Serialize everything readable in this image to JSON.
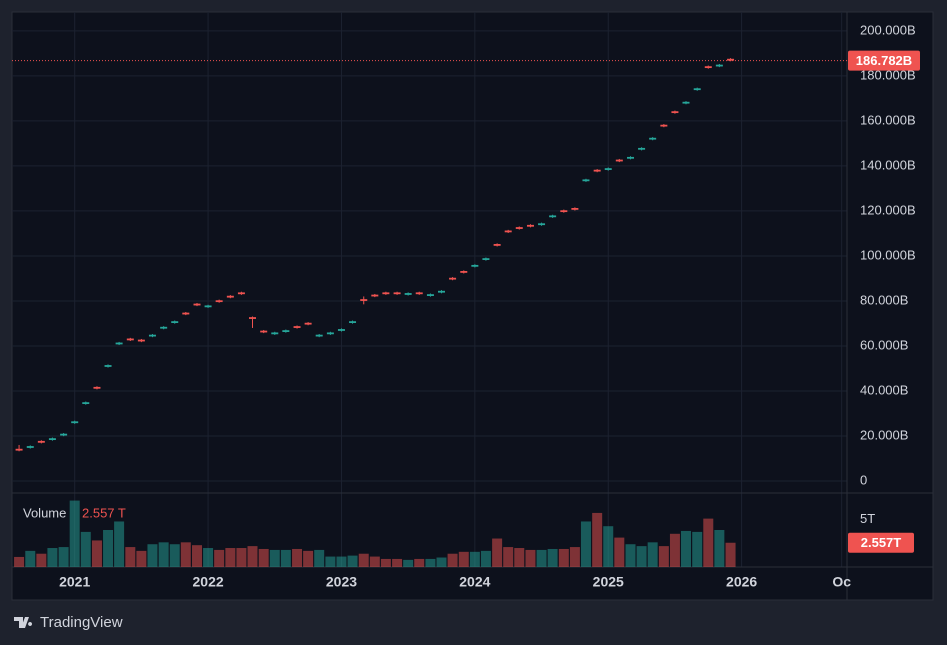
{
  "chart_data": {
    "type": "candlestick",
    "x": [
      2020.583,
      2020.667,
      2020.75,
      2020.833,
      2020.917,
      2021,
      2021.083,
      2021.167,
      2021.25,
      2021.333,
      2021.417,
      2021.5,
      2021.583,
      2021.667,
      2021.75,
      2021.833,
      2021.917,
      2022,
      2022.083,
      2022.167,
      2022.25,
      2022.333,
      2022.417,
      2022.5,
      2022.583,
      2022.667,
      2022.75,
      2022.833,
      2022.917,
      2023,
      2023.083,
      2023.167,
      2023.25,
      2023.333,
      2023.417,
      2023.5,
      2023.583,
      2023.667,
      2023.75,
      2023.833,
      2023.917,
      2024,
      2024.083,
      2024.167,
      2024.25,
      2024.333,
      2024.417,
      2024.5,
      2024.583,
      2024.667,
      2024.75,
      2024.833,
      2024.917,
      2025,
      2025.083,
      2025.167,
      2025.25,
      2025.333,
      2025.417,
      2025.5,
      2025.583,
      2025.667,
      2025.75,
      2025.833,
      2025.917
    ],
    "open": [
      14.3,
      14.7,
      17.8,
      18.2,
      20.2,
      25.7,
      34.2,
      41.8,
      50.7,
      60.7,
      63.3,
      62.8,
      64.2,
      67.7,
      70.2,
      74.8,
      78.8,
      77.2,
      80.3,
      82.3,
      83.8,
      72.8,
      66.8,
      65.2,
      66.2,
      68.8,
      70.3,
      64.2,
      65.2,
      66.7,
      70.2,
      80.8,
      82.8,
      83.8,
      83.8,
      82.7,
      83.8,
      82.2,
      83.7,
      90.3,
      93.3,
      95.2,
      98.2,
      105.3,
      111.3,
      112.8,
      113.8,
      113.7,
      117.2,
      120.3,
      121.3,
      133.2,
      138.3,
      138.2,
      142.8,
      143.2,
      147.2,
      151.7,
      158.3,
      164.3,
      167.7,
      173.7,
      184.3,
      184.2,
      187.6
    ],
    "high": [
      16,
      15.8,
      18.1,
      19.3,
      21.3,
      26.8,
      35.3,
      42.1,
      51.8,
      61.8,
      63.6,
      63.1,
      65.3,
      68.8,
      71.3,
      75.1,
      79.1,
      78.3,
      80.6,
      82.6,
      84.1,
      73.1,
      67.1,
      66.3,
      67.3,
      69.1,
      70.6,
      65.3,
      66.3,
      67.8,
      71.3,
      82,
      83.1,
      84.1,
      84.1,
      83.8,
      84.1,
      83.3,
      84.8,
      90.6,
      93.6,
      96.3,
      99.3,
      105.6,
      111.6,
      113.1,
      114.1,
      114.8,
      118.3,
      120.6,
      121.6,
      134.3,
      138.6,
      139.3,
      143.1,
      144.3,
      148.3,
      152.8,
      158.6,
      164.6,
      168.8,
      174.8,
      184.6,
      185.3,
      187.9
    ],
    "low": [
      13.2,
      14.4,
      16.7,
      17.9,
      19.9,
      25.4,
      33.9,
      40.7,
      50.4,
      60.4,
      62.2,
      61.7,
      63.9,
      67.4,
      69.9,
      73.7,
      77.7,
      76.9,
      79.2,
      81.2,
      82.7,
      68,
      65.7,
      64.9,
      65.9,
      67.7,
      69.2,
      63.9,
      64.9,
      66.4,
      69.9,
      78.5,
      81.7,
      82.7,
      82.7,
      82.4,
      82.7,
      81.9,
      83.4,
      89.2,
      92.2,
      94.9,
      97.9,
      104.2,
      110.2,
      111.7,
      112.7,
      113.4,
      116.9,
      119.2,
      120.2,
      132.9,
      137.2,
      137.9,
      141.7,
      142.9,
      146.9,
      151.4,
      157.2,
      163.2,
      167.4,
      173.4,
      183.2,
      183.9,
      186.5
    ],
    "close": [
      13.5,
      15.5,
      17,
      19,
      21,
      26.5,
      35,
      41,
      51.5,
      61.5,
      62.5,
      62,
      65,
      68.5,
      71,
      74,
      78,
      78,
      79.5,
      81.5,
      83,
      72,
      66,
      66,
      67,
      68,
      69.5,
      65,
      66,
      67.5,
      71,
      80,
      82,
      83,
      83,
      83.5,
      83,
      83,
      84.5,
      89.5,
      92.5,
      96,
      99,
      104.5,
      110.5,
      112,
      113,
      114.5,
      118,
      119.5,
      120.5,
      134,
      137.5,
      139,
      142,
      144,
      148,
      152.5,
      157.5,
      163.5,
      168.5,
      174.5,
      183.5,
      185,
      186.782
    ],
    "xlim": [
      2020.53,
      2026.79
    ],
    "xticks": [
      2021,
      2022,
      2023,
      2024,
      2025,
      2026,
      {
        "value": 2026.75,
        "label": "Oc"
      }
    ],
    "ylim": [
      -4.9,
      208.4
    ],
    "yticks": [
      0,
      {
        "value": 20,
        "label": "20.000B"
      },
      {
        "value": 40,
        "label": "40.000B"
      },
      {
        "value": 60,
        "label": "60.000B"
      },
      {
        "value": 80,
        "label": "80.000B"
      },
      {
        "value": 100,
        "label": "100.000B"
      },
      {
        "value": 120,
        "label": "120.000B"
      },
      {
        "value": 140,
        "label": "140.000B"
      },
      {
        "value": 160,
        "label": "160.000B"
      },
      {
        "value": 180,
        "label": "180.000B"
      },
      {
        "value": 200,
        "label": "200.000B"
      }
    ],
    "grid": true,
    "up_color": "#26a69a",
    "down_color": "#ef5350",
    "last_value_label": "186.782B",
    "volume": {
      "name": "Volume",
      "values": [
        1.06,
        1.7,
        1.4,
        2.0,
        2.1,
        7.0,
        3.7,
        2.8,
        3.9,
        4.8,
        2.1,
        1.7,
        2.4,
        2.6,
        2.4,
        2.6,
        2.3,
        2.0,
        1.8,
        2.0,
        2.0,
        2.2,
        1.9,
        1.8,
        1.8,
        1.9,
        1.7,
        1.8,
        1.1,
        1.1,
        1.2,
        1.4,
        1.1,
        0.85,
        0.85,
        0.75,
        0.85,
        0.85,
        1.0,
        1.4,
        1.6,
        1.6,
        1.7,
        3.0,
        2.1,
        2.0,
        1.8,
        1.8,
        1.9,
        1.9,
        2.1,
        4.8,
        5.7,
        4.3,
        3.1,
        2.4,
        2.2,
        2.6,
        2.2,
        3.5,
        3.8,
        3.7,
        5.1,
        3.9,
        2.557
      ],
      "ylim": [
        0,
        7.8
      ],
      "yticks": [
        {
          "value": 5,
          "label": "5T"
        }
      ],
      "legend_value_label": "2.557 T",
      "last_value_label": "2.557T"
    }
  },
  "branding": "TradingView"
}
